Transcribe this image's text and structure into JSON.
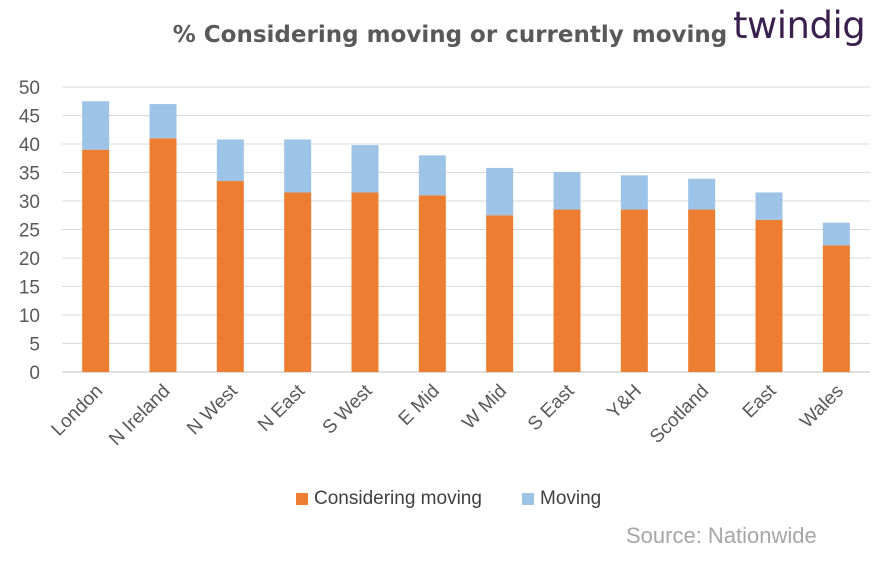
{
  "header": {
    "title": "% Considering moving or currently moving",
    "logo_text": "twindig"
  },
  "footer": {
    "source": "Source: Nationwide"
  },
  "chart_data": {
    "type": "bar",
    "stacked": true,
    "title": "% Considering moving or currently moving",
    "categories": [
      "London",
      "N Ireland",
      "N West",
      "N East",
      "S West",
      "E Mid",
      "W Mid",
      "S East",
      "Y&H",
      "Scotland",
      "East",
      "Wales"
    ],
    "series": [
      {
        "name": "Considering moving",
        "color": "#ed7d31",
        "values": [
          39,
          41,
          33.5,
          31.5,
          31.5,
          31,
          27.5,
          28.5,
          28.5,
          28.5,
          26.7,
          22.2
        ]
      },
      {
        "name": "Moving",
        "color": "#9dc3e6",
        "values": [
          8.5,
          6,
          7.3,
          9.3,
          8.3,
          7,
          8.3,
          6.6,
          6,
          5.4,
          4.8,
          4
        ]
      }
    ],
    "ylim": [
      0,
      50
    ],
    "yticks": [
      0,
      5,
      10,
      15,
      20,
      25,
      30,
      35,
      40,
      45,
      50
    ],
    "grid": true,
    "legend_position": "bottom",
    "xlabel": "",
    "ylabel": ""
  }
}
